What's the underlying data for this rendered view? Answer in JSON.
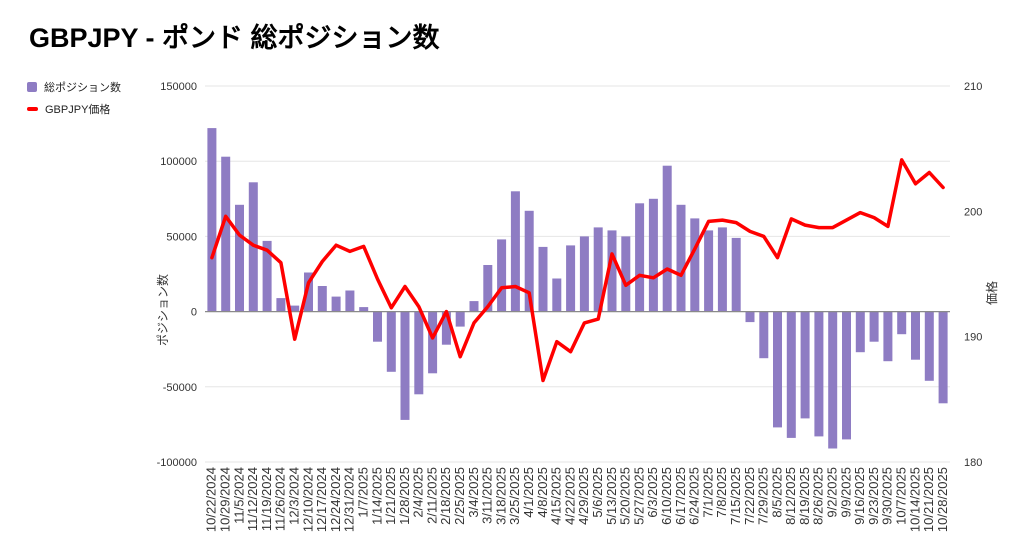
{
  "title": "GBPJPY - ポンド 総ポジション数",
  "legend": {
    "items": [
      {
        "label": "総ポジション数",
        "marker": "bar-swatch"
      },
      {
        "label": "GBPJPY価格",
        "marker": "line-swatch"
      }
    ]
  },
  "colors": {
    "bar": "#8e7cc3",
    "line": "#ff0000",
    "grid": "#e6e6e6",
    "zero_line": "#8a8a8a",
    "tick_text": "#333333",
    "axis_title_text": "#333333",
    "title_text": "#000000"
  },
  "chart_data": {
    "type": "bar",
    "subtype": "combo-bar-line-dual-axis",
    "title": "GBPJPY - ポンド 総ポジション数",
    "grid": true,
    "legend_position": "top-left",
    "categories": [
      "10/22/2024",
      "10/29/2024",
      "11/5/2024",
      "11/12/2024",
      "11/19/2024",
      "11/26/2024",
      "12/3/2024",
      "12/10/2024",
      "12/17/2024",
      "12/24/2024",
      "12/31/2024",
      "1/7/2025",
      "1/14/2025",
      "1/21/2025",
      "1/28/2025",
      "2/4/2025",
      "2/11/2025",
      "2/18/2025",
      "2/25/2025",
      "3/4/2025",
      "3/11/2025",
      "3/18/2025",
      "3/25/2025",
      "4/1/2025",
      "4/8/2025",
      "4/15/2025",
      "4/22/2025",
      "4/29/2025",
      "5/6/2025",
      "5/13/2025",
      "5/20/2025",
      "5/27/2025",
      "6/3/2025",
      "6/10/2025",
      "6/17/2025",
      "6/24/2025",
      "7/1/2025",
      "7/8/2025",
      "7/15/2025",
      "7/22/2025",
      "7/29/2025",
      "8/5/2025",
      "8/12/2025",
      "8/19/2025",
      "8/26/2025",
      "9/2/2025",
      "9/9/2025",
      "9/16/2025",
      "9/23/2025",
      "9/30/2025",
      "10/7/2025",
      "10/14/2025",
      "10/21/2025",
      "10/28/2025"
    ],
    "series": [
      {
        "name": "総ポジション数",
        "type": "bar",
        "axis": "left",
        "values": [
          122000,
          103000,
          71000,
          86000,
          47000,
          9000,
          4000,
          26000,
          17000,
          10000,
          14000,
          3000,
          -20000,
          -40000,
          -72000,
          -55000,
          -41000,
          -22000,
          -10000,
          7000,
          31000,
          48000,
          80000,
          67000,
          43000,
          22000,
          44000,
          50000,
          56000,
          54000,
          50000,
          72000,
          75000,
          97000,
          71000,
          62000,
          54000,
          56000,
          49000,
          -7000,
          -31000,
          -77000,
          -84000,
          -71000,
          -83000,
          -91000,
          -85000,
          -27000,
          -20000,
          -33000,
          -15000,
          -32000,
          -46000,
          -61000
        ]
      },
      {
        "name": "GBPJPY価格",
        "type": "line",
        "axis": "right",
        "values": [
          196.3,
          199.6,
          198.1,
          197.3,
          196.9,
          195.9,
          189.8,
          194.3,
          196.0,
          197.3,
          196.8,
          197.2,
          194.6,
          192.3,
          194.0,
          192.4,
          189.9,
          192.0,
          188.4,
          191.1,
          192.4,
          193.9,
          194.0,
          193.5,
          186.5,
          189.6,
          188.8,
          191.1,
          191.4,
          196.6,
          194.1,
          194.9,
          194.7,
          195.4,
          194.9,
          197.0,
          199.2,
          199.3,
          199.1,
          198.4,
          198.0,
          196.3,
          199.4,
          198.9,
          198.7,
          198.7,
          199.3,
          199.9,
          199.5,
          198.8,
          204.1,
          202.2,
          203.1,
          201.9
        ]
      }
    ],
    "left_axis": {
      "title": "ポジション数",
      "min": -100000,
      "max": 150000,
      "ticks": [
        150000,
        100000,
        50000,
        0,
        -50000,
        -100000
      ],
      "tick_labels": [
        "150000",
        "100000",
        "50000",
        "0",
        "-50000",
        "-100000"
      ]
    },
    "right_axis": {
      "title": "価格",
      "min": 180,
      "max": 210,
      "ticks": [
        210,
        200,
        190,
        180
      ],
      "tick_labels": [
        "210",
        "200",
        "190",
        "180"
      ]
    }
  }
}
